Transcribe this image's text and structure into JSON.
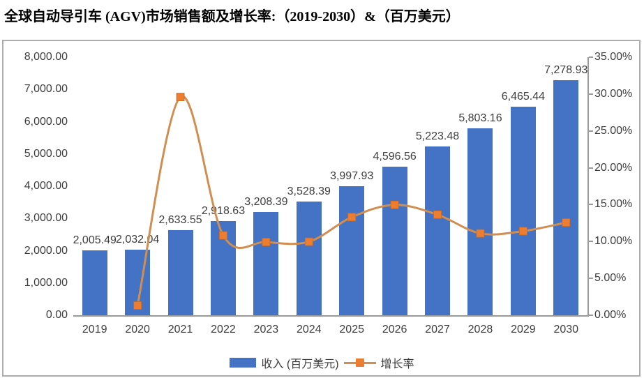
{
  "title": "全球自动导引车 (AGV)市场销售额及增长率:（2019-2030）&（百万美元）",
  "chart_data": {
    "type": "combo-bar-line",
    "categories": [
      "2019",
      "2020",
      "2021",
      "2022",
      "2023",
      "2024",
      "2025",
      "2026",
      "2027",
      "2028",
      "2029",
      "2030"
    ],
    "series": [
      {
        "name": "收入 (百万美元)",
        "type": "bar",
        "axis": "left",
        "color": "#4472C4",
        "values": [
          2005.49,
          2032.04,
          2633.55,
          2918.63,
          3208.39,
          3528.39,
          3997.93,
          4596.56,
          5223.48,
          5803.16,
          6465.44,
          7278.93
        ],
        "data_labels": [
          "2,005.49",
          "2,032.04",
          "2,633.55",
          "2,918.63",
          "3,208.39",
          "3,528.39",
          "3,997.93",
          "4,596.56",
          "5,223.48",
          "5,803.16",
          "6,465.44",
          "7,278.93"
        ]
      },
      {
        "name": "增长率",
        "type": "line",
        "axis": "right",
        "marker_color": "#ED7D31",
        "line_color": "#D18E51",
        "values": [
          null,
          1.32,
          29.6,
          10.82,
          9.93,
          9.97,
          13.31,
          14.97,
          13.64,
          11.1,
          11.41,
          12.58
        ]
      }
    ],
    "left_axis": {
      "min": 0,
      "max": 8000,
      "step": 1000,
      "tick_labels": [
        "0.00",
        "1,000.00",
        "2,000.00",
        "3,000.00",
        "4,000.00",
        "5,000.00",
        "6,000.00",
        "7,000.00",
        "8,000.00"
      ]
    },
    "right_axis": {
      "min": 0,
      "max": 35,
      "step": 5,
      "tick_labels": [
        "0.00%",
        "5.00%",
        "10.00%",
        "15.00%",
        "20.00%",
        "25.00%",
        "30.00%",
        "35.00%"
      ]
    },
    "grid": false,
    "legend_position": "bottom"
  },
  "legend": {
    "items": [
      {
        "label": "收入 (百万美元)",
        "swatch": "bar",
        "color": "#4472C4"
      },
      {
        "label": "增长率",
        "swatch": "line-marker",
        "color": "#ED7D31",
        "line_color": "#D18E51"
      }
    ]
  },
  "colors": {
    "bar": "#4472C4",
    "marker": "#ED7D31",
    "line": "#D18E51",
    "axis_line": "#9A9A9A",
    "text": "#3D3D3D",
    "frame_border": "#ADADAD"
  }
}
